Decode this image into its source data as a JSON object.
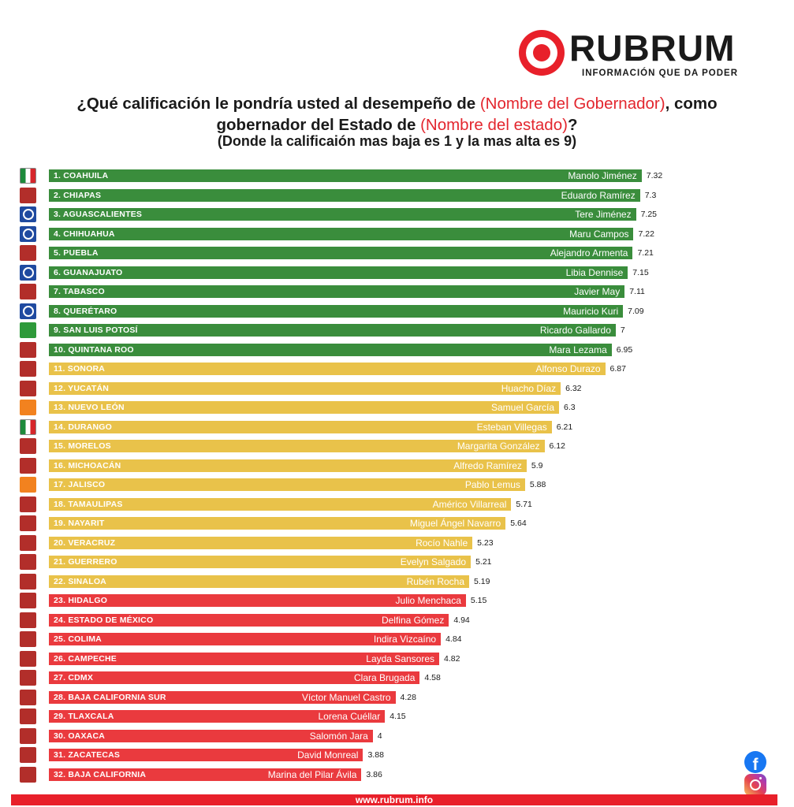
{
  "brand": {
    "name": "RUBRUM",
    "tagline": "INFORMACIÓN QUE DA PODER",
    "footer_url": "www.rubrum.info"
  },
  "title": {
    "line1_a": "¿Qué calificación le pondría usted al desempeño de ",
    "line1_red": "(Nombre del Gobernador)",
    "line1_b": ", como",
    "line2_a": "gobernador del Estado de ",
    "line2_red": "(Nombre del estado)",
    "line2_b": "?",
    "subtitle": "(Donde la calificaión mas baja es 1 y la mas alta es 9)"
  },
  "colors": {
    "green": "#3a8d3c",
    "yellow": "#e9c24a",
    "red": "#ea3a3e",
    "brand_red": "#e8202a"
  },
  "social": [
    "facebook-icon",
    "instagram-icon"
  ],
  "chart_data": {
    "type": "bar",
    "orientation": "horizontal",
    "xlim": [
      0,
      9
    ],
    "grid": false,
    "rows": [
      {
        "rank": "1. COAHUILA",
        "governor": "Manolo Jiménez",
        "value": 7.32,
        "value_label": "7.32",
        "band": "green",
        "party": "pri"
      },
      {
        "rank": "2. CHIAPAS",
        "governor": "Eduardo Ramírez",
        "value": 7.3,
        "value_label": "7.3",
        "band": "green",
        "party": "morena"
      },
      {
        "rank": "3. AGUASCALIENTES",
        "governor": "Tere Jiménez",
        "value": 7.25,
        "value_label": "7.25",
        "band": "green",
        "party": "pan"
      },
      {
        "rank": "4. CHIHUAHUA",
        "governor": "Maru Campos",
        "value": 7.22,
        "value_label": "7.22",
        "band": "green",
        "party": "pan"
      },
      {
        "rank": "5. PUEBLA",
        "governor": "Alejandro Armenta",
        "value": 7.21,
        "value_label": "7.21",
        "band": "green",
        "party": "morena"
      },
      {
        "rank": "6. GUANAJUATO",
        "governor": "Libia Dennise",
        "value": 7.15,
        "value_label": "7.15",
        "band": "green",
        "party": "pan"
      },
      {
        "rank": "7. TABASCO",
        "governor": "Javier May",
        "value": 7.11,
        "value_label": "7.11",
        "band": "green",
        "party": "morena"
      },
      {
        "rank": "8. QUERÉTARO",
        "governor": "Mauricio Kuri",
        "value": 7.09,
        "value_label": "7.09",
        "band": "green",
        "party": "pan"
      },
      {
        "rank": "9. SAN LUIS POTOSÍ",
        "governor": "Ricardo Gallardo",
        "value": 7,
        "value_label": "7",
        "band": "green",
        "party": "verde"
      },
      {
        "rank": "10. QUINTANA ROO",
        "governor": "Mara Lezama",
        "value": 6.95,
        "value_label": "6.95",
        "band": "green",
        "party": "morena"
      },
      {
        "rank": "11. SONORA",
        "governor": "Alfonso Durazo",
        "value": 6.87,
        "value_label": "6.87",
        "band": "yellow",
        "party": "morena"
      },
      {
        "rank": "12. YUCATÁN",
        "governor": "Huacho Díaz",
        "value": 6.32,
        "value_label": "6.32",
        "band": "yellow",
        "party": "morena"
      },
      {
        "rank": "13. NUEVO LEÓN",
        "governor": "Samuel García",
        "value": 6.3,
        "value_label": "6.3",
        "band": "yellow",
        "party": "mc"
      },
      {
        "rank": "14. DURANGO",
        "governor": "Esteban Villegas",
        "value": 6.21,
        "value_label": "6.21",
        "band": "yellow",
        "party": "pri"
      },
      {
        "rank": "15. MORELOS",
        "governor": "Margarita González",
        "value": 6.12,
        "value_label": "6.12",
        "band": "yellow",
        "party": "morena"
      },
      {
        "rank": "16. MICHOACÁN",
        "governor": "Alfredo Ramírez",
        "value": 5.9,
        "value_label": "5.9",
        "band": "yellow",
        "party": "morena"
      },
      {
        "rank": "17. JALISCO",
        "governor": "Pablo Lemus",
        "value": 5.88,
        "value_label": "5.88",
        "band": "yellow",
        "party": "mc"
      },
      {
        "rank": "18. TAMAULIPAS",
        "governor": "Américo Villarreal",
        "value": 5.71,
        "value_label": "5.71",
        "band": "yellow",
        "party": "morena"
      },
      {
        "rank": "19. NAYARIT",
        "governor": "Miguel Ángel Navarro",
        "value": 5.64,
        "value_label": "5.64",
        "band": "yellow",
        "party": "morena"
      },
      {
        "rank": "20. VERACRUZ",
        "governor": "Rocío Nahle",
        "value": 5.23,
        "value_label": "5.23",
        "band": "yellow",
        "party": "morena"
      },
      {
        "rank": "21. GUERRERO",
        "governor": "Evelyn Salgado",
        "value": 5.21,
        "value_label": "5.21",
        "band": "yellow",
        "party": "morena"
      },
      {
        "rank": "22. SINALOA",
        "governor": "Rubén Rocha",
        "value": 5.19,
        "value_label": "5.19",
        "band": "yellow",
        "party": "morena"
      },
      {
        "rank": "23. HIDALGO",
        "governor": "Julio Menchaca",
        "value": 5.15,
        "value_label": "5.15",
        "band": "red",
        "party": "morena"
      },
      {
        "rank": "24. ESTADO DE MÉXICO",
        "governor": "Delfina Gómez",
        "value": 4.94,
        "value_label": "4.94",
        "band": "red",
        "party": "morena"
      },
      {
        "rank": "25. COLIMA",
        "governor": "Indira Vizcaíno",
        "value": 4.84,
        "value_label": "4.84",
        "band": "red",
        "party": "morena"
      },
      {
        "rank": "26. CAMPECHE",
        "governor": "Layda Sansores",
        "value": 4.82,
        "value_label": "4.82",
        "band": "red",
        "party": "morena"
      },
      {
        "rank": "27. CDMX",
        "governor": "Clara Brugada",
        "value": 4.58,
        "value_label": "4.58",
        "band": "red",
        "party": "morena"
      },
      {
        "rank": "28. BAJA CALIFORNIA SUR",
        "governor": "Víctor Manuel Castro",
        "value": 4.28,
        "value_label": "4.28",
        "band": "red",
        "party": "morena"
      },
      {
        "rank": "29. TLAXCALA",
        "governor": "Lorena Cuéllar",
        "value": 4.15,
        "value_label": "4.15",
        "band": "red",
        "party": "morena"
      },
      {
        "rank": "30. OAXACA",
        "governor": "Salomón Jara",
        "value": 4,
        "value_label": "4",
        "band": "red",
        "party": "morena"
      },
      {
        "rank": "31. ZACATECAS",
        "governor": "David Monreal",
        "value": 3.88,
        "value_label": "3.88",
        "band": "red",
        "party": "morena"
      },
      {
        "rank": "32. BAJA CALIFORNIA",
        "governor": "Marina del Pilar Ávila",
        "value": 3.86,
        "value_label": "3.86",
        "band": "red",
        "party": "morena"
      }
    ]
  }
}
